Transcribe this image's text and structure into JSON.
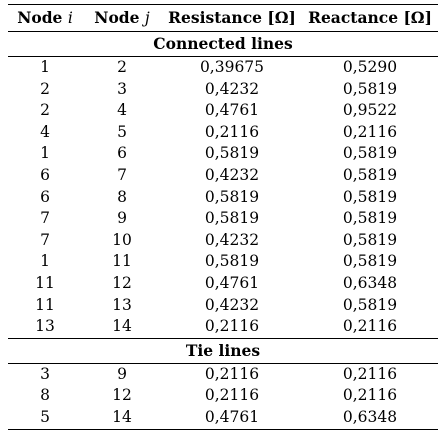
{
  "table": {
    "headers": {
      "node_i_label": "Node",
      "node_i_var": "i",
      "node_j_label": "Node",
      "node_j_var": "j",
      "resistance": "Resistance [Ω]",
      "reactance": "Reactance [Ω]"
    },
    "sections": [
      {
        "title": "Connected lines",
        "rows": [
          [
            "1",
            "2",
            "0,39675",
            "0,5290"
          ],
          [
            "2",
            "3",
            "0,4232",
            "0,5819"
          ],
          [
            "2",
            "4",
            "0,4761",
            "0,9522"
          ],
          [
            "4",
            "5",
            "0,2116",
            "0,2116"
          ],
          [
            "1",
            "6",
            "0,5819",
            "0,5819"
          ],
          [
            "6",
            "7",
            "0,4232",
            "0,5819"
          ],
          [
            "6",
            "8",
            "0,5819",
            "0,5819"
          ],
          [
            "7",
            "9",
            "0,5819",
            "0,5819"
          ],
          [
            "7",
            "10",
            "0,4232",
            "0,5819"
          ],
          [
            "1",
            "11",
            "0,5819",
            "0,5819"
          ],
          [
            "11",
            "12",
            "0,4761",
            "0,6348"
          ],
          [
            "11",
            "13",
            "0,4232",
            "0,5819"
          ],
          [
            "13",
            "14",
            "0,2116",
            "0,2116"
          ]
        ]
      },
      {
        "title": "Tie lines",
        "rows": [
          [
            "3",
            "9",
            "0,2116",
            "0,2116"
          ],
          [
            "8",
            "12",
            "0,2116",
            "0,2116"
          ],
          [
            "5",
            "14",
            "0,4761",
            "0,6348"
          ]
        ]
      }
    ]
  }
}
